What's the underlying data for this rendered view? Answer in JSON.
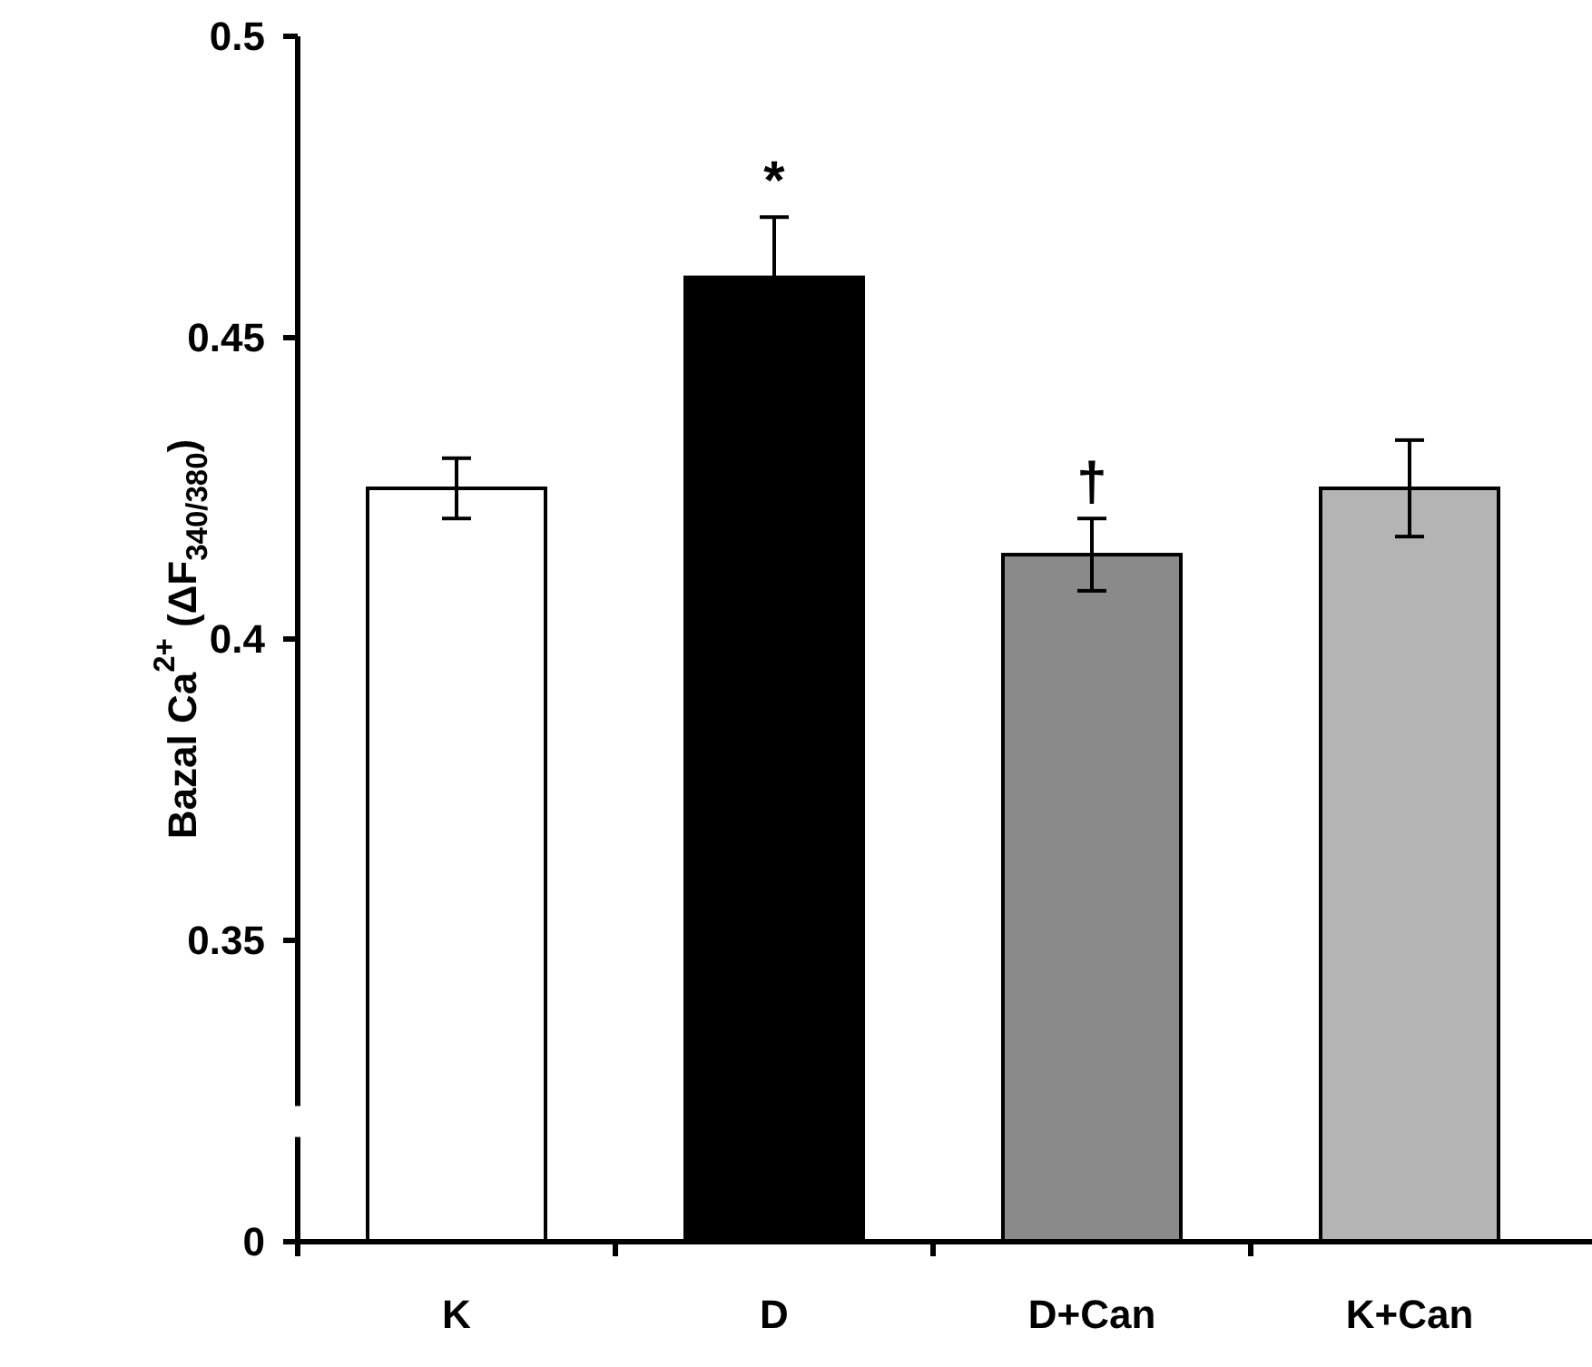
{
  "chart_data": {
    "type": "bar",
    "ylabel": "Bazal Ca$^{2+}$ (ΔF$_{340/380}$)",
    "categories": [
      "K",
      "D",
      "D+Can",
      "K+Can"
    ],
    "values": [
      0.425,
      0.46,
      0.414,
      0.425
    ],
    "errors": [
      0.005,
      0.01,
      0.006,
      0.008
    ],
    "colors": [
      "#ffffff",
      "#000000",
      "#8a8a8a",
      "#b4b4b4"
    ],
    "ylim": [
      0.3,
      0.5
    ],
    "yticks": [
      {
        "value": 0.3,
        "label": "0"
      },
      0.35,
      0.4,
      0.45,
      0.5
    ],
    "annotations": [
      {
        "text": "*",
        "x": "D",
        "y": 0.47
      },
      {
        "text": "†",
        "x": "D+Can",
        "y": 0.42
      }
    ]
  }
}
